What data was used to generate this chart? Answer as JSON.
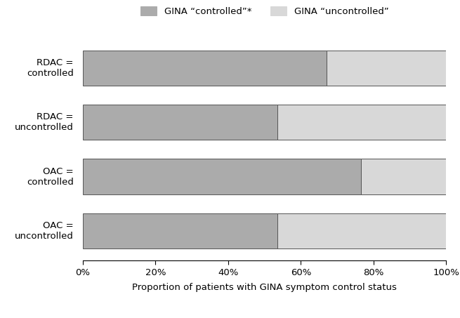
{
  "categories": [
    "RDAC =\ncontrolled",
    "RDAC =\nuncontrolled",
    "OAC =\ncontrolled",
    "OAC =\nuncontrolled"
  ],
  "controlled_values": [
    0.67,
    0.535,
    0.765,
    0.535
  ],
  "uncontrolled_values": [
    0.33,
    0.465,
    0.235,
    0.465
  ],
  "color_controlled": "#ABABAB",
  "color_uncontrolled": "#D8D8D8",
  "xlabel": "Proportion of patients with GINA symptom control status",
  "legend_controlled": "GINA “controlled”*",
  "legend_uncontrolled": "GINA “uncontrolled”",
  "xticks": [
    0.0,
    0.2,
    0.4,
    0.6,
    0.8,
    1.0
  ],
  "xticklabels": [
    "0%",
    "20%",
    "40%",
    "60%",
    "80%",
    "100%"
  ],
  "bar_height": 0.65,
  "background_color": "#ffffff",
  "edge_color": "#555555"
}
